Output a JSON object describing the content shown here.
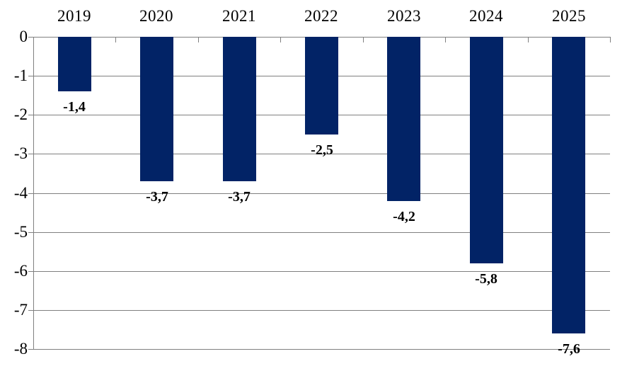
{
  "chart_data": {
    "type": "bar",
    "title": "",
    "xlabel": "",
    "ylabel": "",
    "categories": [
      "2019",
      "2020",
      "2021",
      "2022",
      "2023",
      "2024",
      "2025"
    ],
    "values": [
      -1.4,
      -3.7,
      -3.7,
      -2.5,
      -4.2,
      -5.8,
      -7.6
    ],
    "value_labels": [
      "-1,4",
      "-3,7",
      "-3,7",
      "-2,5",
      "-4,2",
      "-5,8",
      "-7,6"
    ],
    "y_tick_labels": [
      "0",
      "-1",
      "-2",
      "-3",
      "-4",
      "-5",
      "-6",
      "-7",
      "-8"
    ],
    "y_tick_values": [
      0,
      -1,
      -2,
      -3,
      -4,
      -5,
      -6,
      -7,
      -8
    ],
    "ylim": [
      -8,
      0
    ],
    "grid": true,
    "legend_position": "none",
    "colors": {
      "bar": "#022366",
      "gridline": "#808080",
      "text": "#000000",
      "background": "#ffffff"
    }
  }
}
